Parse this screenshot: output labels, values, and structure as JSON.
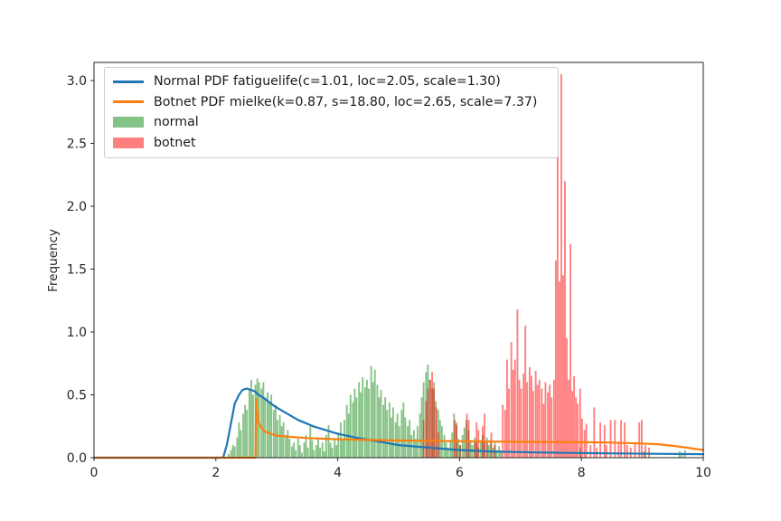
{
  "figure": {
    "background": "#ffffff",
    "spine_color": "#262626",
    "text_color": "#262626"
  },
  "chart_data": {
    "type": "histogram",
    "title": "",
    "xlabel": "",
    "ylabel": "Frequency",
    "xlim": [
      0,
      10
    ],
    "ylim": [
      0,
      3.144
    ],
    "grid": false,
    "legend_position": "upper left",
    "xticks": [
      {
        "v": 0,
        "label": "0"
      },
      {
        "v": 2,
        "label": "2"
      },
      {
        "v": 4,
        "label": "4"
      },
      {
        "v": 6,
        "label": "6"
      },
      {
        "v": 8,
        "label": "8"
      },
      {
        "v": 10,
        "label": "10"
      }
    ],
    "yticks": [
      {
        "v": 0.0,
        "label": "0.0"
      },
      {
        "v": 0.5,
        "label": "0.5"
      },
      {
        "v": 1.0,
        "label": "1.0"
      },
      {
        "v": 1.5,
        "label": "1.5"
      },
      {
        "v": 2.0,
        "label": "2.0"
      },
      {
        "v": 2.5,
        "label": "2.5"
      },
      {
        "v": 3.0,
        "label": "3.0"
      }
    ],
    "series": [
      {
        "label": "Normal PDF fatiguelife(c=1.01, loc=2.05, scale=1.30)",
        "kind": "line",
        "color": "#1f77b4",
        "linewidth": 2.2,
        "points": [
          [
            0,
            0
          ],
          [
            2.05,
            0
          ],
          [
            2.12,
            0.002
          ],
          [
            2.18,
            0.1
          ],
          [
            2.25,
            0.28
          ],
          [
            2.31,
            0.43
          ],
          [
            2.38,
            0.5
          ],
          [
            2.44,
            0.54
          ],
          [
            2.51,
            0.55
          ],
          [
            2.57,
            0.54
          ],
          [
            2.63,
            0.53
          ],
          [
            2.7,
            0.5
          ],
          [
            2.83,
            0.46
          ],
          [
            2.96,
            0.41
          ],
          [
            3.1,
            0.37
          ],
          [
            3.35,
            0.3
          ],
          [
            3.6,
            0.25
          ],
          [
            4.0,
            0.19
          ],
          [
            4.3,
            0.16
          ],
          [
            4.65,
            0.13
          ],
          [
            5.0,
            0.1
          ],
          [
            5.5,
            0.08
          ],
          [
            5.95,
            0.062
          ],
          [
            6.5,
            0.05
          ],
          [
            7.25,
            0.042
          ],
          [
            8.0,
            0.037
          ],
          [
            8.6,
            0.034
          ],
          [
            9.2,
            0.031
          ],
          [
            10,
            0.028
          ]
        ]
      },
      {
        "label": "Botnet PDF mielke(k=0.87, s=18.80, loc=2.65, scale=7.37)",
        "kind": "line",
        "color": "#ff7f0e",
        "linewidth": 2.2,
        "points": [
          [
            0,
            0
          ],
          [
            2.65,
            0
          ],
          [
            2.66,
            0.465
          ],
          [
            2.69,
            0.3
          ],
          [
            2.73,
            0.25
          ],
          [
            2.8,
            0.21
          ],
          [
            2.9,
            0.19
          ],
          [
            3.0,
            0.175
          ],
          [
            3.25,
            0.165
          ],
          [
            3.5,
            0.156
          ],
          [
            4.0,
            0.147
          ],
          [
            4.5,
            0.141
          ],
          [
            5.0,
            0.137
          ],
          [
            5.5,
            0.134
          ],
          [
            6.0,
            0.131
          ],
          [
            6.5,
            0.128
          ],
          [
            7.0,
            0.126
          ],
          [
            7.5,
            0.125
          ],
          [
            8.0,
            0.123
          ],
          [
            8.5,
            0.12
          ],
          [
            9.0,
            0.113
          ],
          [
            9.3,
            0.105
          ],
          [
            9.5,
            0.094
          ],
          [
            9.7,
            0.082
          ],
          [
            10,
            0.061
          ]
        ]
      },
      {
        "label": "normal",
        "kind": "hist",
        "color": "#008000",
        "opacity": 0.48,
        "bin_width": 0.033,
        "bars": [
          [
            2.21,
            0.03
          ],
          [
            2.25,
            0.06
          ],
          [
            2.28,
            0.1
          ],
          [
            2.31,
            0.09
          ],
          [
            2.35,
            0.16
          ],
          [
            2.38,
            0.28
          ],
          [
            2.41,
            0.22
          ],
          [
            2.45,
            0.35
          ],
          [
            2.48,
            0.42
          ],
          [
            2.51,
            0.38
          ],
          [
            2.55,
            0.55
          ],
          [
            2.58,
            0.62
          ],
          [
            2.61,
            0.5
          ],
          [
            2.65,
            0.58
          ],
          [
            2.68,
            0.63
          ],
          [
            2.71,
            0.6
          ],
          [
            2.75,
            0.55
          ],
          [
            2.78,
            0.6
          ],
          [
            2.81,
            0.48
          ],
          [
            2.85,
            0.52
          ],
          [
            2.88,
            0.44
          ],
          [
            2.91,
            0.5
          ],
          [
            2.95,
            0.38
          ],
          [
            2.98,
            0.42
          ],
          [
            3.01,
            0.3
          ],
          [
            3.05,
            0.34
          ],
          [
            3.08,
            0.25
          ],
          [
            3.11,
            0.28
          ],
          [
            3.15,
            0.18
          ],
          [
            3.18,
            0.22
          ],
          [
            3.21,
            0.15
          ],
          [
            3.25,
            0.09
          ],
          [
            3.28,
            0.12
          ],
          [
            3.31,
            0.06
          ],
          [
            3.35,
            0.15
          ],
          [
            3.38,
            0.1
          ],
          [
            3.41,
            0.04
          ],
          [
            3.45,
            0.12
          ],
          [
            3.48,
            0.18
          ],
          [
            3.51,
            0.08
          ],
          [
            3.55,
            0.25
          ],
          [
            3.58,
            0.14
          ],
          [
            3.61,
            0.06
          ],
          [
            3.65,
            0.1
          ],
          [
            3.68,
            0.16
          ],
          [
            3.71,
            0.08
          ],
          [
            3.75,
            0.12
          ],
          [
            3.78,
            0.05
          ],
          [
            3.81,
            0.18
          ],
          [
            3.85,
            0.26
          ],
          [
            3.88,
            0.12
          ],
          [
            3.91,
            0.08
          ],
          [
            3.95,
            0.15
          ],
          [
            3.98,
            0.1
          ],
          [
            4.01,
            0.2
          ],
          [
            4.05,
            0.28
          ],
          [
            4.08,
            0.14
          ],
          [
            4.11,
            0.3
          ],
          [
            4.15,
            0.42
          ],
          [
            4.18,
            0.35
          ],
          [
            4.21,
            0.5
          ],
          [
            4.25,
            0.44
          ],
          [
            4.28,
            0.55
          ],
          [
            4.31,
            0.48
          ],
          [
            4.35,
            0.6
          ],
          [
            4.38,
            0.52
          ],
          [
            4.41,
            0.64
          ],
          [
            4.45,
            0.56
          ],
          [
            4.48,
            0.62
          ],
          [
            4.51,
            0.55
          ],
          [
            4.55,
            0.73
          ],
          [
            4.58,
            0.6
          ],
          [
            4.61,
            0.7
          ],
          [
            4.65,
            0.58
          ],
          [
            4.68,
            0.48
          ],
          [
            4.71,
            0.54
          ],
          [
            4.75,
            0.42
          ],
          [
            4.78,
            0.48
          ],
          [
            4.81,
            0.38
          ],
          [
            4.85,
            0.44
          ],
          [
            4.88,
            0.32
          ],
          [
            4.91,
            0.4
          ],
          [
            4.95,
            0.28
          ],
          [
            4.98,
            0.35
          ],
          [
            5.01,
            0.25
          ],
          [
            5.05,
            0.38
          ],
          [
            5.08,
            0.44
          ],
          [
            5.11,
            0.32
          ],
          [
            5.15,
            0.25
          ],
          [
            5.18,
            0.3
          ],
          [
            5.21,
            0.18
          ],
          [
            5.25,
            0.22
          ],
          [
            5.28,
            0.15
          ],
          [
            5.31,
            0.25
          ],
          [
            5.35,
            0.35
          ],
          [
            5.38,
            0.48
          ],
          [
            5.41,
            0.6
          ],
          [
            5.45,
            0.68
          ],
          [
            5.48,
            0.74
          ],
          [
            5.51,
            0.62
          ],
          [
            5.55,
            0.55
          ],
          [
            5.58,
            0.6
          ],
          [
            5.61,
            0.45
          ],
          [
            5.65,
            0.38
          ],
          [
            5.68,
            0.3
          ],
          [
            5.71,
            0.25
          ],
          [
            5.75,
            0.18
          ],
          [
            5.78,
            0.12
          ],
          [
            5.81,
            0.08
          ],
          [
            5.85,
            0.14
          ],
          [
            5.88,
            0.2
          ],
          [
            5.91,
            0.35
          ],
          [
            5.95,
            0.28
          ],
          [
            5.98,
            0.15
          ],
          [
            6.01,
            0.1
          ],
          [
            6.05,
            0.18
          ],
          [
            6.08,
            0.24
          ],
          [
            6.11,
            0.3
          ],
          [
            6.15,
            0.22
          ],
          [
            6.18,
            0.14
          ],
          [
            6.21,
            0.1
          ],
          [
            6.25,
            0.16
          ],
          [
            6.28,
            0.12
          ],
          [
            6.31,
            0.08
          ],
          [
            6.35,
            0.14
          ],
          [
            6.38,
            0.18
          ],
          [
            6.41,
            0.12
          ],
          [
            6.45,
            0.16
          ],
          [
            6.48,
            0.1
          ],
          [
            6.51,
            0.14
          ],
          [
            6.55,
            0.08
          ],
          [
            6.58,
            0.12
          ],
          [
            6.61,
            0.06
          ],
          [
            6.65,
            0.09
          ],
          [
            6.68,
            0.05
          ],
          [
            7.98,
            0.08
          ],
          [
            9.03,
            0.05
          ],
          [
            9.61,
            0.05
          ],
          [
            9.65,
            0.04
          ],
          [
            9.7,
            0.06
          ]
        ]
      },
      {
        "label": "botnet",
        "kind": "hist",
        "color": "#ff0000",
        "opacity": 0.5,
        "bin_width": 0.033,
        "bars": [
          [
            5.41,
            0.3
          ],
          [
            5.45,
            0.45
          ],
          [
            5.48,
            0.55
          ],
          [
            5.52,
            0.62
          ],
          [
            5.55,
            0.68
          ],
          [
            5.58,
            0.55
          ],
          [
            5.62,
            0.4
          ],
          [
            5.65,
            0.2
          ],
          [
            5.92,
            0.3
          ],
          [
            5.95,
            0.26
          ],
          [
            6.01,
            0.1
          ],
          [
            6.12,
            0.35
          ],
          [
            6.15,
            0.3
          ],
          [
            6.25,
            0.12
          ],
          [
            6.28,
            0.28
          ],
          [
            6.31,
            0.22
          ],
          [
            6.38,
            0.25
          ],
          [
            6.41,
            0.35
          ],
          [
            6.45,
            0.12
          ],
          [
            6.52,
            0.2
          ],
          [
            6.58,
            0.1
          ],
          [
            6.71,
            0.42
          ],
          [
            6.75,
            0.38
          ],
          [
            6.78,
            0.78
          ],
          [
            6.81,
            0.55
          ],
          [
            6.85,
            0.92
          ],
          [
            6.88,
            0.7
          ],
          [
            6.91,
            0.78
          ],
          [
            6.95,
            1.18
          ],
          [
            6.98,
            0.62
          ],
          [
            7.01,
            0.55
          ],
          [
            7.05,
            0.67
          ],
          [
            7.08,
            1.05
          ],
          [
            7.11,
            0.6
          ],
          [
            7.15,
            0.72
          ],
          [
            7.18,
            0.65
          ],
          [
            7.21,
            0.53
          ],
          [
            7.25,
            0.69
          ],
          [
            7.28,
            0.58
          ],
          [
            7.31,
            0.62
          ],
          [
            7.35,
            0.55
          ],
          [
            7.38,
            0.43
          ],
          [
            7.41,
            0.6
          ],
          [
            7.45,
            0.52
          ],
          [
            7.48,
            0.58
          ],
          [
            7.51,
            0.48
          ],
          [
            7.55,
            0.62
          ],
          [
            7.58,
            1.57
          ],
          [
            7.61,
            2.4
          ],
          [
            7.64,
            1.4
          ],
          [
            7.67,
            3.05
          ],
          [
            7.7,
            1.45
          ],
          [
            7.73,
            2.2
          ],
          [
            7.76,
            0.95
          ],
          [
            7.79,
            0.62
          ],
          [
            7.82,
            1.7
          ],
          [
            7.85,
            0.53
          ],
          [
            7.88,
            0.65
          ],
          [
            7.91,
            0.48
          ],
          [
            7.94,
            0.43
          ],
          [
            7.98,
            0.55
          ],
          [
            8.01,
            0.31
          ],
          [
            8.05,
            0.22
          ],
          [
            8.08,
            0.27
          ],
          [
            8.15,
            0.1
          ],
          [
            8.21,
            0.4
          ],
          [
            8.25,
            0.08
          ],
          [
            8.31,
            0.28
          ],
          [
            8.38,
            0.26
          ],
          [
            8.41,
            0.1
          ],
          [
            8.48,
            0.3
          ],
          [
            8.55,
            0.3
          ],
          [
            8.61,
            0.12
          ],
          [
            8.65,
            0.3
          ],
          [
            8.71,
            0.28
          ],
          [
            8.75,
            0.1
          ],
          [
            8.81,
            0.08
          ],
          [
            8.88,
            0.12
          ],
          [
            8.95,
            0.28
          ],
          [
            8.99,
            0.3
          ],
          [
            9.05,
            0.1
          ],
          [
            9.11,
            0.08
          ]
        ]
      }
    ]
  }
}
